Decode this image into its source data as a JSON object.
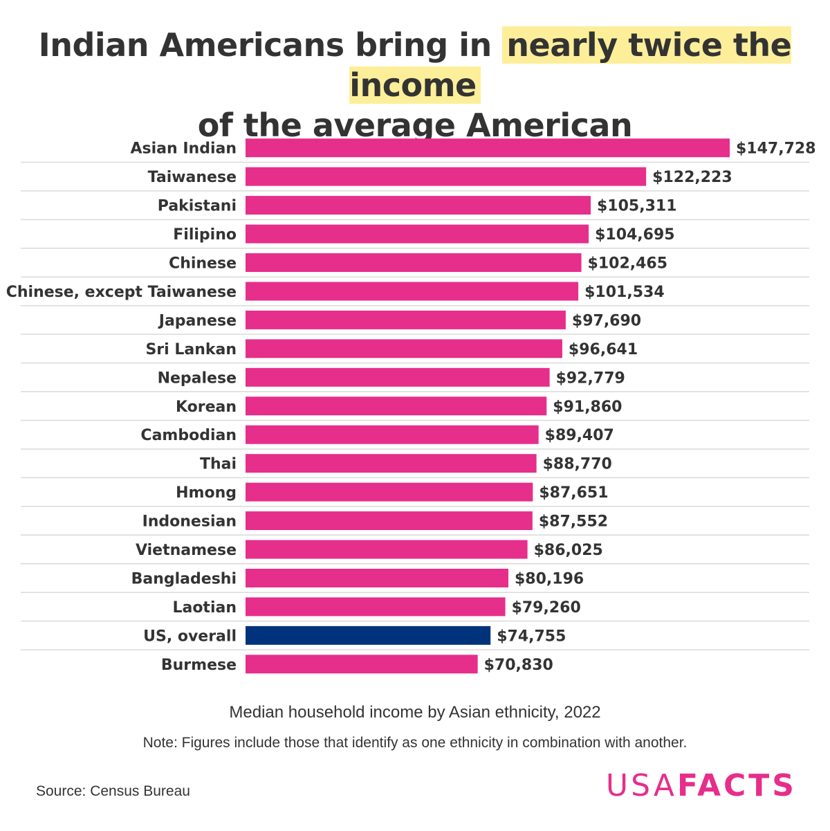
{
  "header": {
    "title_part1": "Indian Americans bring in ",
    "title_highlight": "nearly twice the income",
    "title_line2": "of the average American"
  },
  "footer": {
    "subtitle": "Median household income by Asian ethnicity, 2022",
    "note": "Note: Figures include those that identify as one ethnicity in combination with another.",
    "source": "Source: Census Bureau",
    "logo_light": "USA",
    "logo_bold": "FACTS"
  },
  "colors": {
    "bar": "#e62e8b",
    "bar_highlight": "#00337c",
    "highlight_background": "#fdef9a",
    "text": "#333333"
  },
  "chart_data": {
    "type": "bar",
    "orientation": "horizontal",
    "categories": [
      "Asian Indian",
      "Taiwanese",
      "Pakistani",
      "Filipino",
      "Chinese",
      "Chinese, except Taiwanese",
      "Japanese",
      "Sri Lankan",
      "Nepalese",
      "Korean",
      "Cambodian",
      "Thai",
      "Hmong",
      "Indonesian",
      "Vietnamese",
      "Bangladeshi",
      "Laotian",
      "US, overall",
      "Burmese"
    ],
    "values": [
      147728,
      122223,
      105311,
      104695,
      102465,
      101534,
      97690,
      96641,
      92779,
      91860,
      89407,
      88770,
      87651,
      87552,
      86025,
      80196,
      79260,
      74755,
      70830
    ],
    "value_labels": [
      "$147,728",
      "$122,223",
      "$105,311",
      "$104,695",
      "$102,465",
      "$101,534",
      "$97,690",
      "$96,641",
      "$92,779",
      "$91,860",
      "$89,407",
      "$88,770",
      "$87,651",
      "$87,552",
      "$86,025",
      "$80,196",
      "$79,260",
      "$74,755",
      "$70,830"
    ],
    "highlighted_category": "US, overall",
    "xlim": [
      0,
      147728
    ],
    "grid": false
  }
}
